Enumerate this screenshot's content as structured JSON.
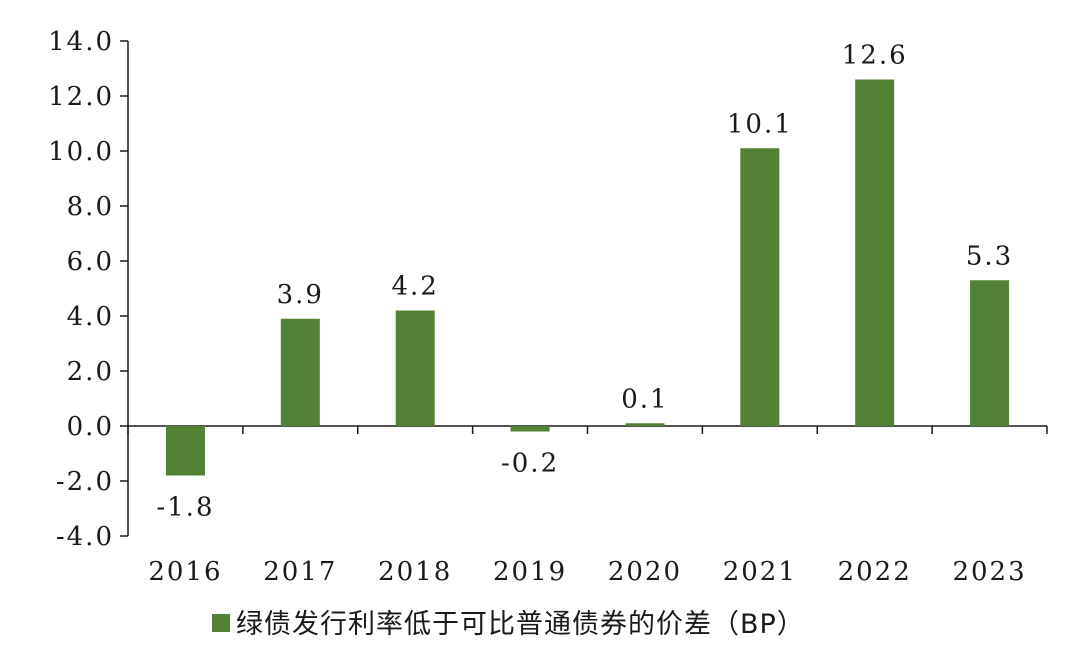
{
  "chart_data": {
    "type": "bar",
    "categories": [
      "2016",
      "2017",
      "2018",
      "2019",
      "2020",
      "2021",
      "2022",
      "2023"
    ],
    "series": [
      {
        "name": "绿债发行利率低于可比普通债券的价差（BP）",
        "values": [
          -1.8,
          3.9,
          4.2,
          -0.2,
          0.1,
          10.1,
          12.6,
          5.3
        ],
        "data_labels": [
          "-1.8",
          "3.9",
          "4.2",
          "-0.2",
          "0.1",
          "10.1",
          "12.6",
          "5.3"
        ]
      }
    ],
    "y_ticks": [
      14.0,
      12.0,
      10.0,
      8.0,
      6.0,
      4.0,
      2.0,
      0.0,
      -2.0,
      -4.0
    ],
    "y_tick_labels": [
      "14.0",
      "12.0",
      "10.0",
      "8.0",
      "6.0",
      "4.0",
      "2.0",
      "0.0",
      "-2.0",
      "-4.0"
    ],
    "ylim": [
      -4,
      14
    ],
    "title": "",
    "xlabel": "",
    "ylabel": "",
    "grid": false,
    "legend_position": "bottom-center",
    "colors": {
      "bar": "#538135",
      "axis": "#1a1a1a",
      "text": "#1a1a1a"
    }
  }
}
